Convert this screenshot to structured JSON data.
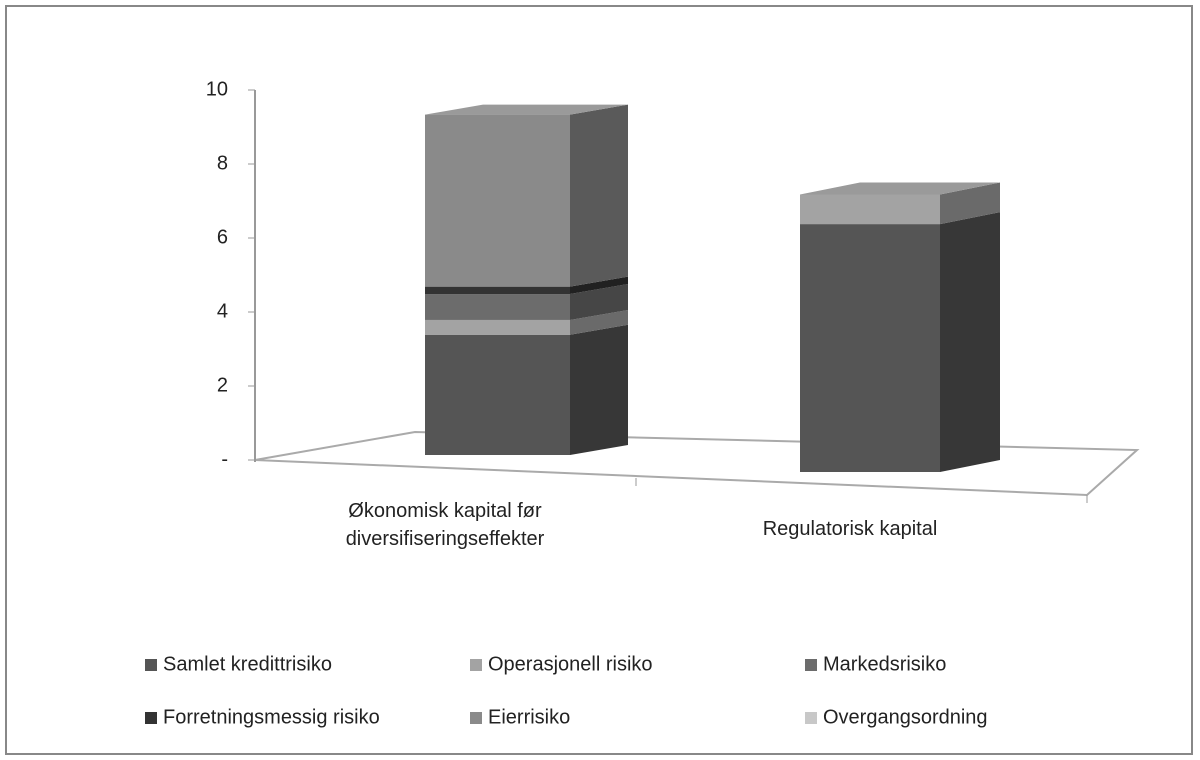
{
  "chart_data": {
    "type": "bar3d_stacked",
    "categories": [
      "Økonomisk kapital før diversifiseringseffekter",
      "Regulatorisk kapital"
    ],
    "series": [
      {
        "name": "Samlet kredittrisiko",
        "color": "#555555",
        "values": [
          3.25,
          6.7
        ]
      },
      {
        "name": "Operasjonell risiko",
        "color": "#a3a3a3",
        "values": [
          0.4,
          0.8
        ]
      },
      {
        "name": "Markedsrisiko",
        "color": "#6c6c6c",
        "values": [
          0.7,
          0
        ]
      },
      {
        "name": "Forretningsmessig risiko",
        "color": "#333333",
        "values": [
          0.2,
          0
        ]
      },
      {
        "name": "Eierrisiko",
        "color": "#8a8a8a",
        "values": [
          4.65,
          0
        ]
      },
      {
        "name": "Overgangsordning",
        "color": "#c8c8c8",
        "values": [
          0,
          0
        ]
      }
    ],
    "ylim": [
      0,
      10
    ],
    "yticks": [
      {
        "value": 0,
        "label": "-"
      },
      2,
      4,
      6,
      8,
      10
    ]
  }
}
